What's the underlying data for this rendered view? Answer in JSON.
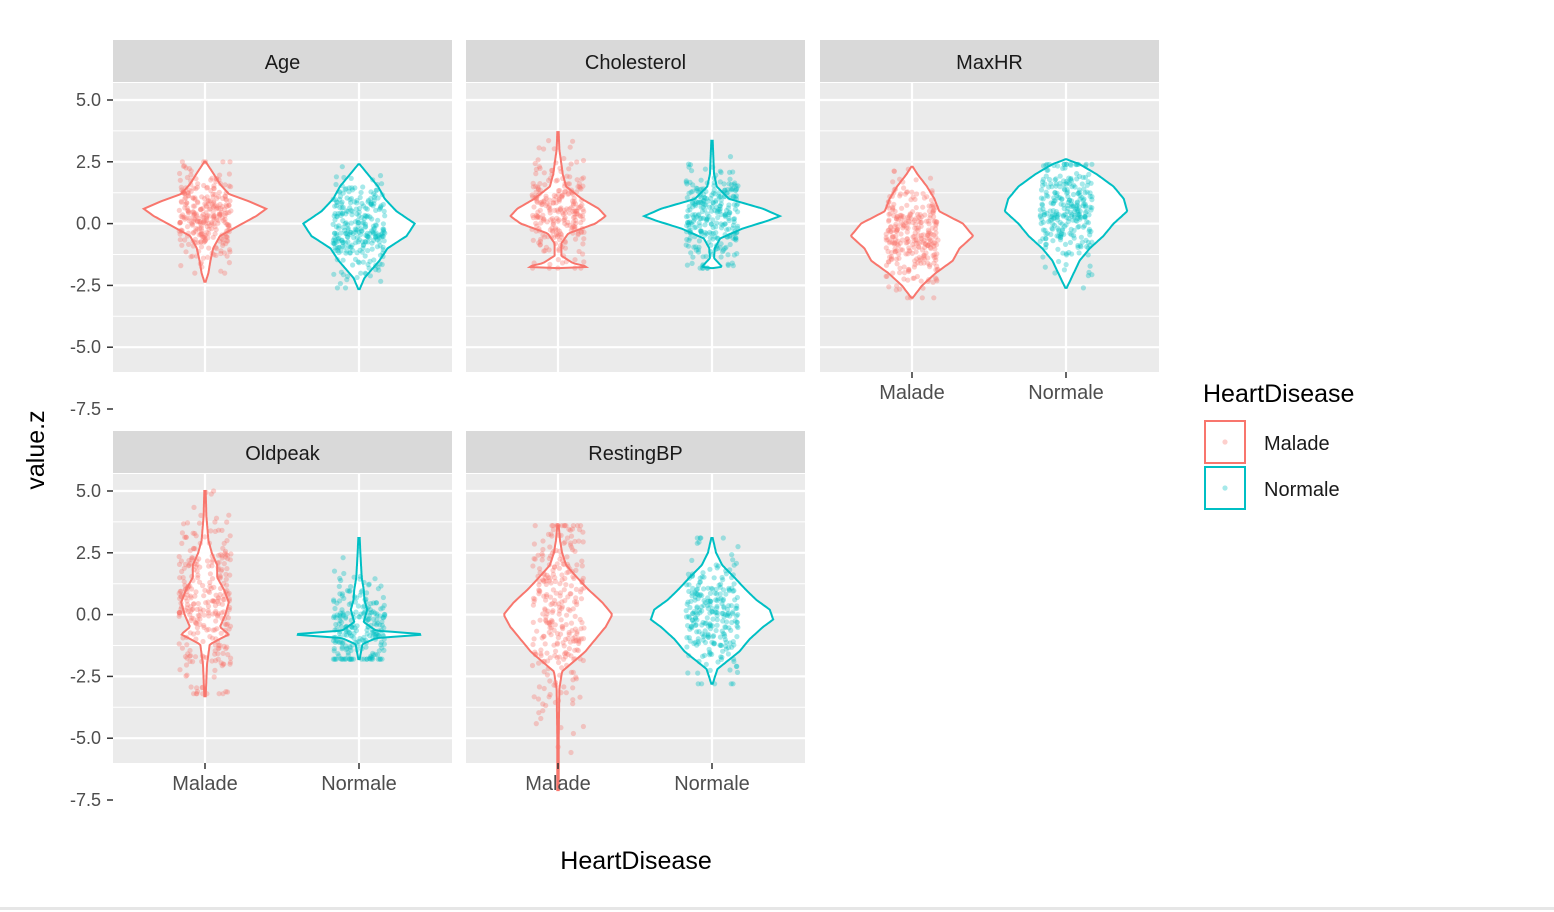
{
  "chart_data": {
    "type": "violin",
    "title": "",
    "xlabel": "HeartDisease",
    "ylabel": "value.z",
    "facet_wrap": [
      "Age",
      "Cholesterol",
      "MaxHR",
      "Oldpeak",
      "RestingBP"
    ],
    "categories": [
      "Malade",
      "Normale"
    ],
    "ylim": [
      -7.5,
      5.0
    ],
    "yticks": [
      {
        "value": 5.0,
        "label": "5.0"
      },
      {
        "value": 2.5,
        "label": "2.5"
      },
      {
        "value": 0.0,
        "label": "0.0"
      },
      {
        "value": -2.5,
        "label": "-2.5"
      },
      {
        "value": -5.0,
        "label": "-5.0"
      },
      {
        "value": -7.5,
        "label": "-7.5"
      }
    ],
    "grid": true,
    "legend": {
      "title": "HeartDisease",
      "position": "right",
      "entries": [
        {
          "name": "Malade",
          "color": "#F8766D"
        },
        {
          "name": "Normale",
          "color": "#00BFC4"
        }
      ]
    },
    "panels": [
      {
        "name": "Age",
        "groups": [
          {
            "category": "Malade",
            "color": "#F8766D",
            "min": -2.35,
            "max": 2.5,
            "density_profile": [
              [
                -2.35,
                0.01
              ],
              [
                -2.0,
                0.05
              ],
              [
                -1.5,
                0.08
              ],
              [
                -1.0,
                0.12
              ],
              [
                -0.5,
                0.22
              ],
              [
                0.0,
                0.55
              ],
              [
                0.3,
                0.75
              ],
              [
                0.6,
                0.9
              ],
              [
                0.9,
                0.65
              ],
              [
                1.2,
                0.35
              ],
              [
                1.6,
                0.22
              ],
              [
                2.0,
                0.13
              ],
              [
                2.5,
                0.01
              ]
            ],
            "points": {
              "n": 300,
              "spread": [
                -2.3,
                2.5
              ],
              "center": 0.35
            }
          },
          {
            "category": "Normale",
            "color": "#00BFC4",
            "min": -2.65,
            "max": 2.4,
            "density_profile": [
              [
                -2.65,
                0.01
              ],
              [
                -2.2,
                0.08
              ],
              [
                -1.5,
                0.3
              ],
              [
                -1.0,
                0.42
              ],
              [
                -0.5,
                0.7
              ],
              [
                0.0,
                0.82
              ],
              [
                0.5,
                0.55
              ],
              [
                1.0,
                0.38
              ],
              [
                1.5,
                0.28
              ],
              [
                2.0,
                0.13
              ],
              [
                2.4,
                0.01
              ]
            ],
            "points": {
              "n": 280,
              "spread": [
                -2.6,
                2.3
              ],
              "center": -0.2
            }
          }
        ]
      },
      {
        "name": "Cholesterol",
        "groups": [
          {
            "category": "Malade",
            "color": "#F8766D",
            "min": -1.8,
            "max": 3.7,
            "density_profile": [
              [
                -1.8,
                0.01
              ],
              [
                -1.75,
                0.45
              ],
              [
                -1.6,
                0.22
              ],
              [
                -1.3,
                0.05
              ],
              [
                -0.8,
                0.05
              ],
              [
                -0.4,
                0.15
              ],
              [
                0.0,
                0.55
              ],
              [
                0.3,
                0.7
              ],
              [
                0.6,
                0.6
              ],
              [
                1.0,
                0.35
              ],
              [
                1.5,
                0.12
              ],
              [
                2.0,
                0.07
              ],
              [
                3.0,
                0.02
              ],
              [
                3.7,
                0.01
              ]
            ],
            "points": {
              "n": 260,
              "spread": [
                -1.8,
                3.6
              ],
              "center": 0.4
            }
          },
          {
            "category": "Normale",
            "color": "#00BFC4",
            "min": -1.8,
            "max": 3.35,
            "density_profile": [
              [
                -1.8,
                0.01
              ],
              [
                -1.75,
                0.15
              ],
              [
                -1.4,
                0.03
              ],
              [
                -1.0,
                0.04
              ],
              [
                -0.6,
                0.12
              ],
              [
                -0.2,
                0.45
              ],
              [
                0.1,
                0.8
              ],
              [
                0.3,
                1.0
              ],
              [
                0.6,
                0.75
              ],
              [
                1.0,
                0.25
              ],
              [
                1.5,
                0.07
              ],
              [
                2.0,
                0.03
              ],
              [
                3.35,
                0.01
              ]
            ],
            "points": {
              "n": 280,
              "spread": [
                -1.8,
                3.3
              ],
              "center": 0.3
            }
          }
        ]
      },
      {
        "name": "MaxHR",
        "groups": [
          {
            "category": "Malade",
            "color": "#F8766D",
            "min": -3.0,
            "max": 2.3,
            "density_profile": [
              [
                -3.0,
                0.01
              ],
              [
                -2.5,
                0.15
              ],
              [
                -2.0,
                0.35
              ],
              [
                -1.5,
                0.6
              ],
              [
                -1.0,
                0.7
              ],
              [
                -0.5,
                0.9
              ],
              [
                0.0,
                0.75
              ],
              [
                0.5,
                0.4
              ],
              [
                1.0,
                0.33
              ],
              [
                1.5,
                0.22
              ],
              [
                2.0,
                0.08
              ],
              [
                2.3,
                0.01
              ]
            ],
            "points": {
              "n": 300,
              "spread": [
                -3.0,
                2.2
              ],
              "center": -0.5
            }
          },
          {
            "category": "Normale",
            "color": "#00BFC4",
            "min": -2.6,
            "max": 2.6,
            "density_profile": [
              [
                -2.6,
                0.01
              ],
              [
                -2.2,
                0.08
              ],
              [
                -1.5,
                0.2
              ],
              [
                -1.0,
                0.35
              ],
              [
                -0.5,
                0.55
              ],
              [
                0.0,
                0.7
              ],
              [
                0.5,
                0.9
              ],
              [
                1.0,
                0.85
              ],
              [
                1.5,
                0.7
              ],
              [
                2.0,
                0.45
              ],
              [
                2.4,
                0.2
              ],
              [
                2.6,
                0.01
              ]
            ],
            "points": {
              "n": 280,
              "spread": [
                -2.6,
                2.4
              ],
              "center": 0.6
            }
          }
        ]
      },
      {
        "name": "Oldpeak",
        "groups": [
          {
            "category": "Malade",
            "color": "#F8766D",
            "min": -3.3,
            "max": 5.0,
            "density_profile": [
              [
                -3.3,
                0.01
              ],
              [
                -2.0,
                0.03
              ],
              [
                -1.2,
                0.07
              ],
              [
                -0.8,
                0.35
              ],
              [
                -0.5,
                0.22
              ],
              [
                0.0,
                0.3
              ],
              [
                0.5,
                0.35
              ],
              [
                1.0,
                0.28
              ],
              [
                1.5,
                0.18
              ],
              [
                2.0,
                0.18
              ],
              [
                2.5,
                0.1
              ],
              [
                3.0,
                0.05
              ],
              [
                4.0,
                0.02
              ],
              [
                5.0,
                0.01
              ]
            ],
            "points": {
              "n": 300,
              "spread": [
                -3.2,
                5.0
              ],
              "center": 0.6
            }
          },
          {
            "category": "Normale",
            "color": "#00BFC4",
            "min": -1.8,
            "max": 3.1,
            "density_profile": [
              [
                -1.8,
                0.01
              ],
              [
                -1.2,
                0.05
              ],
              [
                -0.95,
                0.25
              ],
              [
                -0.8,
                1.0
              ],
              [
                -0.65,
                0.25
              ],
              [
                -0.3,
                0.07
              ],
              [
                0.2,
                0.12
              ],
              [
                0.6,
                0.08
              ],
              [
                1.0,
                0.07
              ],
              [
                1.5,
                0.04
              ],
              [
                2.5,
                0.02
              ],
              [
                3.1,
                0.01
              ]
            ],
            "points": {
              "n": 240,
              "spread": [
                -1.8,
                3.1
              ],
              "center": -0.5
            }
          }
        ]
      },
      {
        "name": "RestingBP",
        "groups": [
          {
            "category": "Malade",
            "color": "#F8766D",
            "min": -7.1,
            "max": 3.6,
            "density_profile": [
              [
                -7.1,
                0.01
              ],
              [
                -5.0,
                0.01
              ],
              [
                -3.0,
                0.02
              ],
              [
                -2.3,
                0.06
              ],
              [
                -1.5,
                0.4
              ],
              [
                -1.0,
                0.55
              ],
              [
                -0.5,
                0.7
              ],
              [
                0.0,
                0.8
              ],
              [
                0.5,
                0.65
              ],
              [
                1.0,
                0.45
              ],
              [
                1.5,
                0.28
              ],
              [
                2.0,
                0.12
              ],
              [
                2.5,
                0.06
              ],
              [
                3.0,
                0.03
              ],
              [
                3.6,
                0.01
              ]
            ],
            "points": {
              "n": 300,
              "spread": [
                -7.1,
                3.6
              ],
              "center": 0.1
            }
          },
          {
            "category": "Normale",
            "color": "#00BFC4",
            "min": -2.8,
            "max": 3.1,
            "density_profile": [
              [
                -2.8,
                0.01
              ],
              [
                -2.2,
                0.08
              ],
              [
                -1.5,
                0.4
              ],
              [
                -1.0,
                0.55
              ],
              [
                -0.5,
                0.75
              ],
              [
                -0.2,
                0.9
              ],
              [
                0.2,
                0.85
              ],
              [
                0.6,
                0.65
              ],
              [
                1.0,
                0.5
              ],
              [
                1.5,
                0.33
              ],
              [
                2.0,
                0.15
              ],
              [
                2.5,
                0.06
              ],
              [
                3.1,
                0.01
              ]
            ],
            "points": {
              "n": 260,
              "spread": [
                -2.8,
                3.1
              ],
              "center": 0.0
            }
          }
        ]
      }
    ]
  }
}
